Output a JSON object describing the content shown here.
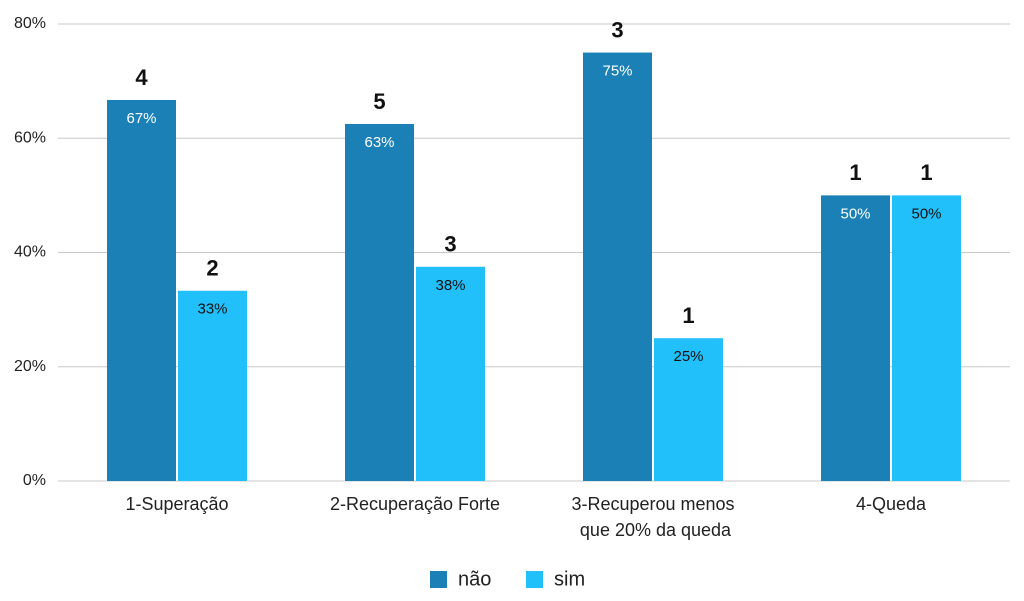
{
  "chart_data": {
    "type": "bar",
    "categories": [
      "1-Superação",
      "2-Recuperação Forte",
      "3-Recuperou menos que 20% da queda",
      "4-Queda"
    ],
    "series": [
      {
        "name": "não",
        "color": "#1b80b6",
        "values": [
          66.7,
          62.5,
          75,
          50
        ],
        "value_labels": [
          "67%",
          "63%",
          "75%",
          "50%"
        ],
        "counts": [
          4,
          5,
          3,
          1
        ]
      },
      {
        "name": "sim",
        "color": "#22c0fb",
        "values": [
          33.3,
          37.5,
          25,
          50
        ],
        "value_labels": [
          "33%",
          "38%",
          "25%",
          "50%"
        ],
        "counts": [
          2,
          3,
          1,
          1
        ]
      }
    ],
    "ylim": [
      0,
      80
    ],
    "yticks": [
      {
        "value": 0,
        "label": "0%"
      },
      {
        "value": 20,
        "label": "20%"
      },
      {
        "value": 40,
        "label": "40%"
      },
      {
        "value": 60,
        "label": "60%"
      },
      {
        "value": 80,
        "label": "80%"
      }
    ],
    "grid": true,
    "legend": "bottom"
  }
}
